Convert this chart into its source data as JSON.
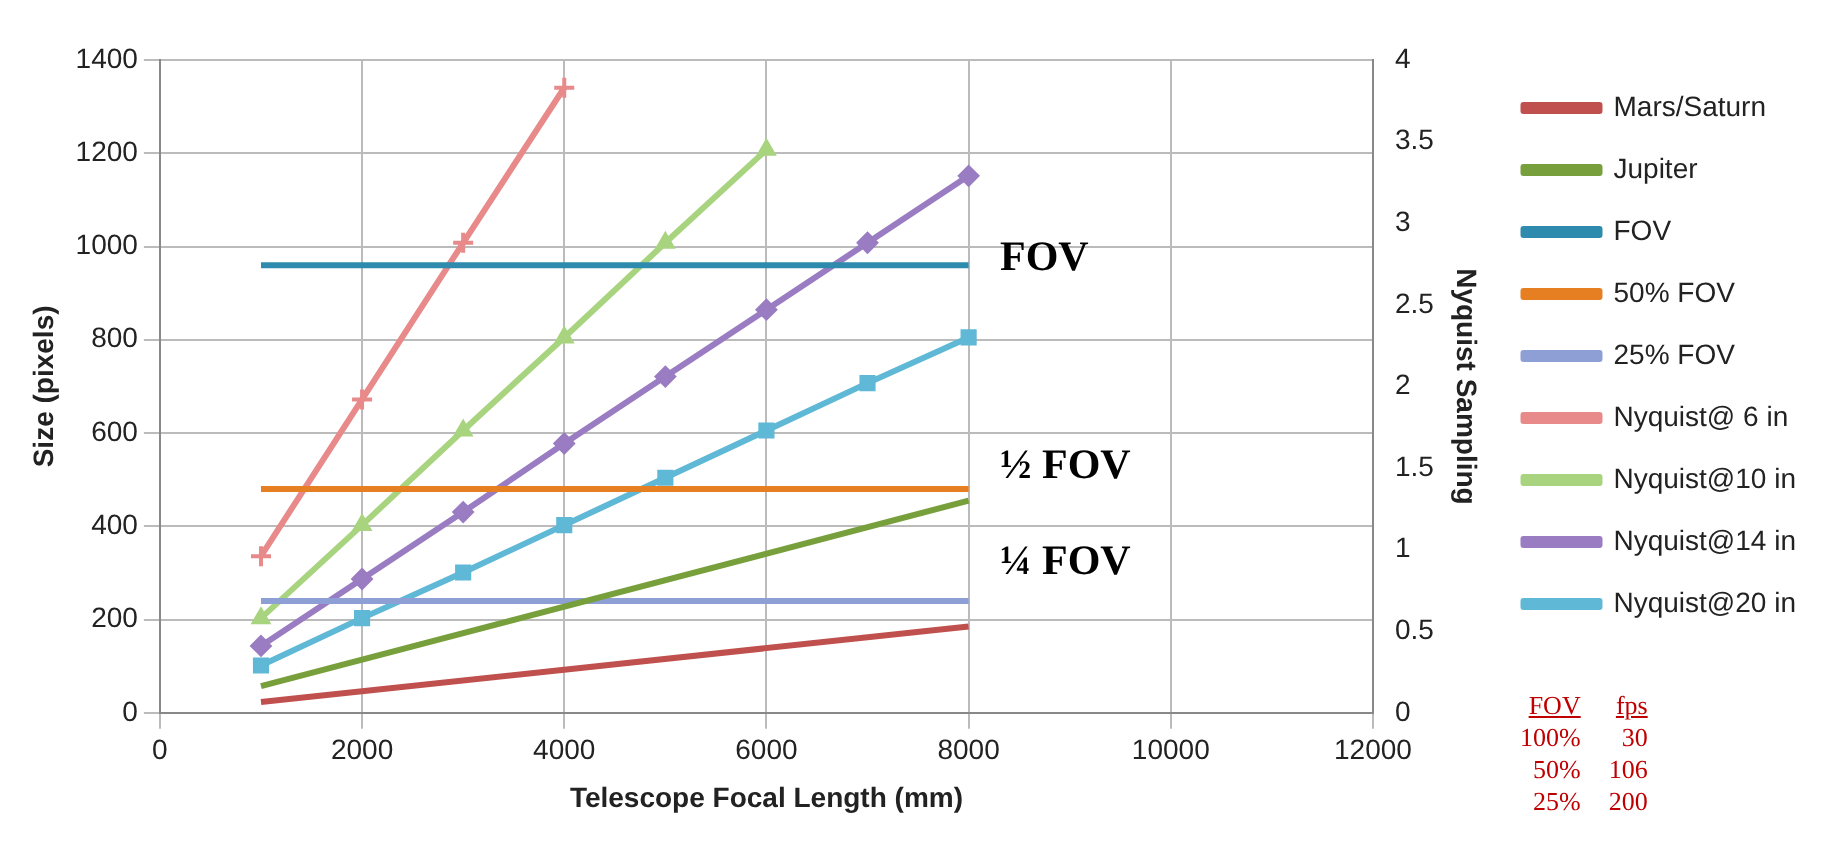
{
  "chart_data": {
    "type": "line",
    "xlabel": "Telescope Focal Length (mm)",
    "ylabel": "Size (pixels)",
    "y2label": "Nyquist Sampling",
    "xlim": [
      0,
      12000
    ],
    "xticks": [
      0,
      2000,
      4000,
      6000,
      8000,
      10000,
      12000
    ],
    "ylim": [
      0,
      1400
    ],
    "yticks": [
      0,
      200,
      400,
      600,
      800,
      1000,
      1200,
      1400
    ],
    "y2lim": [
      0,
      4
    ],
    "y2ticks": [
      0,
      0.5,
      1,
      1.5,
      2,
      2.5,
      3,
      3.5,
      4
    ],
    "grid": true,
    "legend": "right",
    "series": [
      {
        "name": "Mars/Saturn",
        "color": "#c0504d",
        "marker": "none",
        "x": [
          1000,
          8000
        ],
        "values": [
          23,
          185
        ]
      },
      {
        "name": "Jupiter",
        "color": "#77a03c",
        "marker": "none",
        "x": [
          1000,
          8000
        ],
        "values": [
          57,
          455
        ]
      },
      {
        "name": "FOV",
        "color": "#2e8bad",
        "marker": "none",
        "x": [
          1000,
          8000
        ],
        "values": [
          960,
          960
        ]
      },
      {
        "name": "50% FOV",
        "color": "#e67e22",
        "marker": "none",
        "x": [
          1000,
          8000
        ],
        "values": [
          480,
          480
        ]
      },
      {
        "name": "25% FOV",
        "color": "#8e9fd6",
        "marker": "none",
        "x": [
          1000,
          8000
        ],
        "values": [
          240,
          240
        ]
      },
      {
        "name": "Nyquist@ 6 in",
        "color": "#e8898a",
        "marker": "cross",
        "axis": "y2",
        "x": [
          1000,
          2000,
          3000,
          4000
        ],
        "values": [
          0.96,
          1.92,
          2.88,
          3.83
        ]
      },
      {
        "name": "Nyquist@10 in",
        "color": "#a9d47f",
        "marker": "triangle",
        "axis": "y2",
        "x": [
          1000,
          2000,
          3000,
          4000,
          5000,
          6000
        ],
        "values": [
          0.58,
          1.15,
          1.73,
          2.3,
          2.88,
          3.45
        ]
      },
      {
        "name": "Nyquist@14 in",
        "color": "#9a7cc2",
        "marker": "diamond",
        "axis": "y2",
        "x": [
          1000,
          2000,
          3000,
          4000,
          5000,
          6000,
          7000,
          8000
        ],
        "values": [
          0.41,
          0.82,
          1.23,
          1.65,
          2.06,
          2.47,
          2.88,
          3.29
        ]
      },
      {
        "name": "Nyquist@20 in",
        "color": "#5fb8d6",
        "marker": "square",
        "axis": "y2",
        "x": [
          1000,
          2000,
          3000,
          4000,
          5000,
          6000,
          7000,
          8000
        ],
        "values": [
          0.29,
          0.58,
          0.86,
          1.15,
          1.44,
          1.73,
          2.02,
          2.3
        ]
      }
    ],
    "annotations": [
      "FOV",
      "½ FOV",
      "¼ FOV",
      "FOV fps",
      "100% 30",
      "50% 106",
      "25% 200"
    ]
  }
}
